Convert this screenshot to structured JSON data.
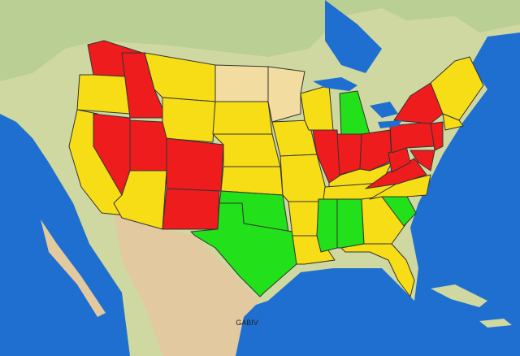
{
  "map": {
    "label": "GABIV"
  }
}
